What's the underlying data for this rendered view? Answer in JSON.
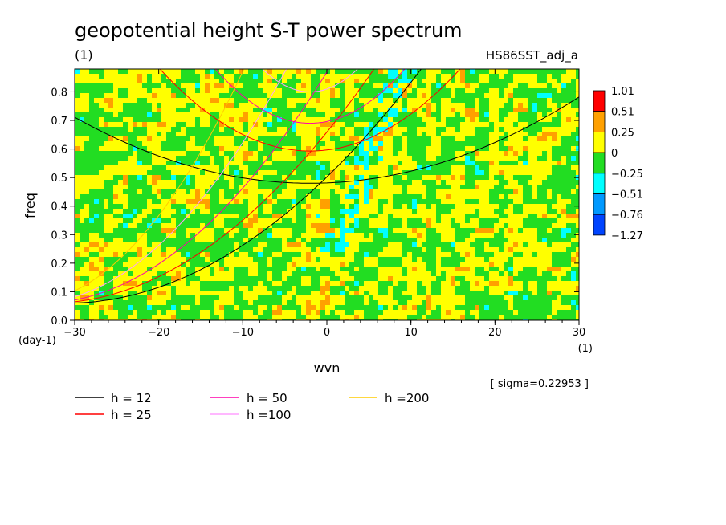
{
  "chart_data": {
    "type": "heatmap",
    "title": "geopotential height S-T power spectrum",
    "subtitle_left": "(1)",
    "subtitle_right": "HS86SST_adj_a",
    "xlabel": "wvn",
    "ylabel": "freq",
    "x_unit": "(1)",
    "y_unit": "(day-1)",
    "xlim": [
      -30,
      30
    ],
    "ylim": [
      0,
      0.88
    ],
    "x_ticks": [
      -30,
      -20,
      -10,
      0,
      10,
      20,
      30
    ],
    "x_tick_labels": [
      "−30",
      "−20",
      "−10",
      "0",
      "10",
      "20",
      "30"
    ],
    "y_ticks": [
      0.0,
      0.1,
      0.2,
      0.3,
      0.4,
      0.5,
      0.6,
      0.7,
      0.8
    ],
    "y_tick_labels": [
      "0.0",
      "0.1",
      "0.2",
      "0.3",
      "0.4",
      "0.5",
      "0.6",
      "0.7",
      "0.8"
    ],
    "sigma_note": "[ sigma=0.22953 ]",
    "colorbar": {
      "levels": [
        "1.01",
        "0.51",
        "0.25",
        "0",
        "−0.25",
        "−0.51",
        "−0.76",
        "−1.27"
      ],
      "colors": [
        "#ff0000",
        "#ffa000",
        "#ffff00",
        "#22dd22",
        "#00ffff",
        "#0099ff",
        "#0044ff"
      ]
    },
    "dispersion_curves": [
      {
        "label": "h = 12",
        "color": "#000000"
      },
      {
        "label": "h = 25",
        "color": "#ff0000"
      },
      {
        "label": "h = 50",
        "color": "#ff00aa"
      },
      {
        "label": "h =100",
        "color": "#ffa0ff"
      },
      {
        "label": "h =200",
        "color": "#ffcc00"
      }
    ]
  }
}
